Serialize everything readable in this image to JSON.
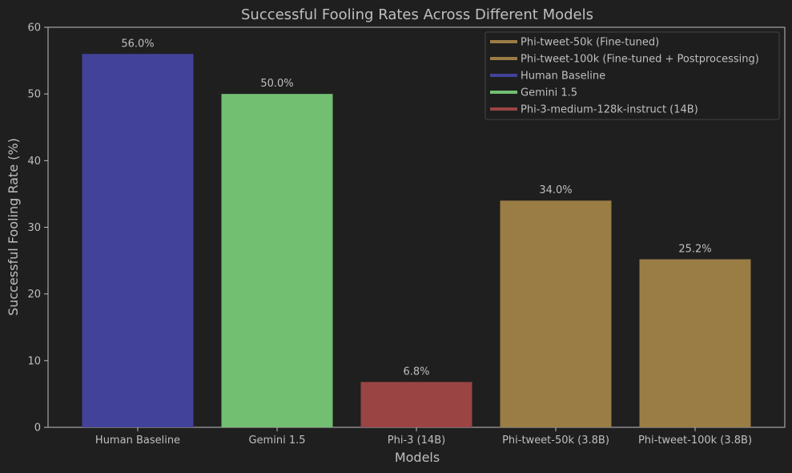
{
  "chart_data": {
    "type": "bar",
    "title": "Successful Fooling Rates Across Different Models",
    "xlabel": "Models",
    "ylabel": "Successful Fooling Rate (%)",
    "ylim": [
      0,
      60
    ],
    "yticks": [
      0,
      10,
      20,
      30,
      40,
      50,
      60
    ],
    "grid": false,
    "legend_position": "top-right",
    "categories": [
      "Human Baseline",
      "Gemini 1.5",
      "Phi-3 (14B)",
      "Phi-tweet-50k (3.8B)",
      "Phi-tweet-100k (3.8B)"
    ],
    "values": [
      56.0,
      50.0,
      6.8,
      34.0,
      25.2
    ],
    "data_labels": [
      "56.0%",
      "50.0%",
      "6.8%",
      "34.0%",
      "25.2%"
    ],
    "bar_colors": [
      "#42429a",
      "#72bf72",
      "#9a4444",
      "#9a7d45",
      "#9a7d45"
    ],
    "legend": [
      {
        "label": "Phi-tweet-50k (Fine-tuned)",
        "color": "#9a7d45"
      },
      {
        "label": "Phi-tweet-100k (Fine-tuned + Postprocessing)",
        "color": "#9a7d45"
      },
      {
        "label": "Human Baseline",
        "color": "#42429a"
      },
      {
        "label": "Gemini 1.5",
        "color": "#72bf72"
      },
      {
        "label": "Phi-3-medium-128k-instruct (14B)",
        "color": "#9a4444"
      }
    ]
  },
  "colors": {
    "background": "#1f1f1f",
    "axis": "#bfbfbf",
    "text": "#bfbfbf"
  }
}
